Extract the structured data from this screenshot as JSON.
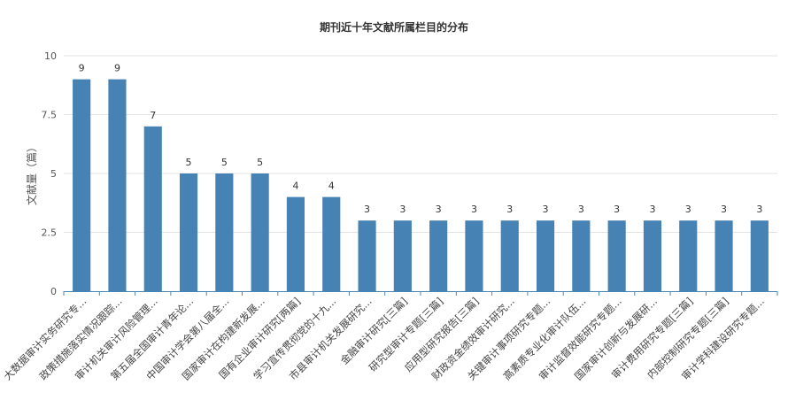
{
  "chart_data": {
    "type": "bar",
    "title": "期刊近十年文献所属栏目的分布",
    "xlabel": "",
    "ylabel": "文献量（篇）",
    "ylim": [
      0,
      10
    ],
    "yticks": [
      0,
      2.5,
      5,
      7.5,
      10
    ],
    "ytick_labels": [
      "0",
      "2.5",
      "5",
      "7.5",
      "10"
    ],
    "grid": true,
    "bar_color": "#4682b4",
    "categories": [
      "大数据审计实务研究专...",
      "政策措施落实情况跟踪...",
      "审计机关审计风险管理...",
      "第五届全国审计青年论...",
      "中国审计学会第八届全...",
      "国家审计在构建新发展...",
      "国有企业审计研究[两篇]",
      "学习宣传贯彻党的十九...",
      "市县审计机关发展研究...",
      "金融审计研究[三篇]",
      "研究型审计专题[三篇]",
      "应用型研究报告[三篇]",
      "财政资金绩效审计研究...",
      "关键审计事项研究专题...",
      "高素质专业化审计队伍...",
      "审计监督效能研究专题...",
      "国家审计创新与发展研...",
      "审计费用研究专题[三篇]",
      "内部控制研究专题[三篇]",
      "审计学科建设研究专题..."
    ],
    "values": [
      9,
      9,
      7,
      5,
      5,
      5,
      4,
      4,
      3,
      3,
      3,
      3,
      3,
      3,
      3,
      3,
      3,
      3,
      3,
      3
    ]
  }
}
